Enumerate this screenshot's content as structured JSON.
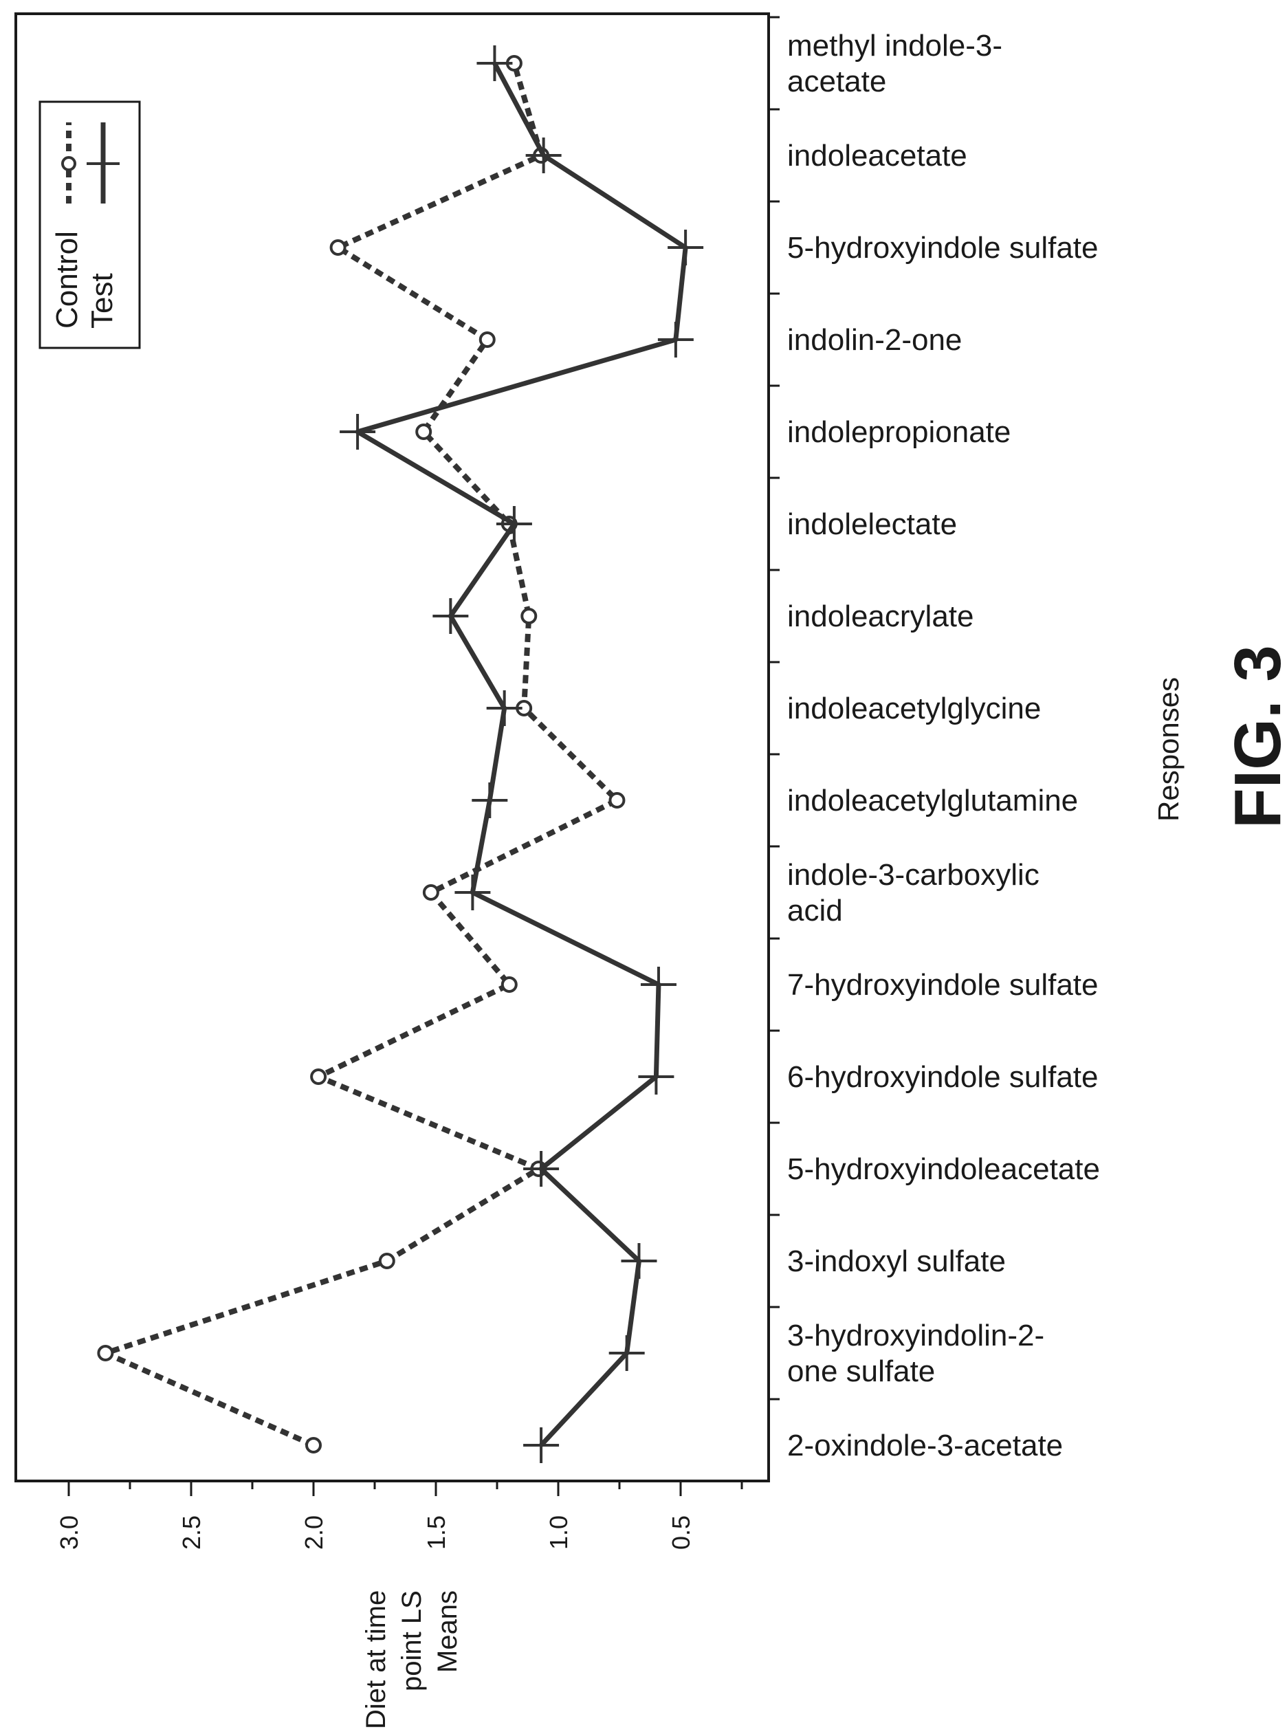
{
  "figure_label": "FIG. 3",
  "chart_data": {
    "type": "line",
    "orientation": "rotated-90",
    "ylabel": [
      "Diet at time",
      "point LS",
      "Means"
    ],
    "xlabel": "Responses",
    "ylim": [
      0.0,
      3.0
    ],
    "y_ticks": [
      "3.0",
      "2.5",
      "2.0",
      "1.5",
      "1.0",
      "0.5"
    ],
    "categories": [
      [
        "2-oxindole-3-acetate"
      ],
      [
        "3-hydroxyindolin-2-",
        "one sulfate"
      ],
      [
        "3-indoxyl sulfate"
      ],
      [
        "5-hydroxyindoleacetate"
      ],
      [
        "6-hydroxyindole sulfate"
      ],
      [
        "7-hydroxyindole sulfate"
      ],
      [
        "indole-3-carboxylic",
        "acid"
      ],
      [
        "indoleacetylglutamine"
      ],
      [
        "indoleacetylglycine"
      ],
      [
        "indoleacrylate"
      ],
      [
        "indolelectate"
      ],
      [
        "indolepropionate"
      ],
      [
        "indolin-2-one"
      ],
      [
        "5-hydroxyindole sulfate"
      ],
      [
        "indoleacetate"
      ],
      [
        "methyl indole-3-",
        "acetate"
      ]
    ],
    "series": [
      {
        "name": "Control",
        "style": "dashed",
        "marker": "circle",
        "color": "#333333",
        "values": [
          2.0,
          2.85,
          1.7,
          1.08,
          1.98,
          1.2,
          1.52,
          0.76,
          1.14,
          1.12,
          1.2,
          1.55,
          1.29,
          1.9,
          1.07,
          1.18
        ]
      },
      {
        "name": "Test",
        "style": "solid",
        "marker": "plus",
        "color": "#333333",
        "values": [
          1.07,
          0.72,
          0.67,
          1.07,
          0.6,
          0.59,
          1.35,
          1.28,
          1.22,
          1.44,
          1.18,
          1.82,
          0.52,
          0.48,
          1.06,
          1.26
        ]
      }
    ],
    "legend": "top-left"
  }
}
